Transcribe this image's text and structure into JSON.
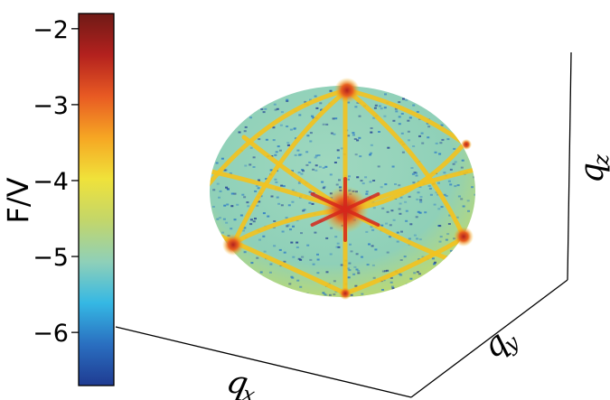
{
  "chart_data": {
    "type": "heatmap",
    "title": "",
    "projection": "3d-sphere",
    "colorbar": {
      "label": "F/V",
      "ticks": [
        -2,
        -3,
        -4,
        -5,
        -6
      ],
      "tick_labels": [
        "−2",
        "−3",
        "−4",
        "−5",
        "−6"
      ],
      "range": [
        -6.7,
        -1.8
      ],
      "colormap": [
        "#1f3b92",
        "#2a6fc0",
        "#35b8e4",
        "#8fd0b8",
        "#c3d66a",
        "#f0e23a",
        "#f6a623",
        "#e85a23",
        "#b3211e",
        "#6f1a16"
      ]
    },
    "axes": {
      "x": {
        "label": "q",
        "subscript": "x"
      },
      "y": {
        "label": "q",
        "subscript": "y"
      },
      "z": {
        "label": "q",
        "subscript": "z"
      }
    },
    "sphere": {
      "base_color": "#8fd0b8",
      "band_color": "#f2c21f",
      "hotspot_color": "#d7261b",
      "speckle_color": "#2a78c6",
      "ridge_value": -3.3,
      "hotspot_value": -2.2,
      "background_value": -4.8
    }
  }
}
